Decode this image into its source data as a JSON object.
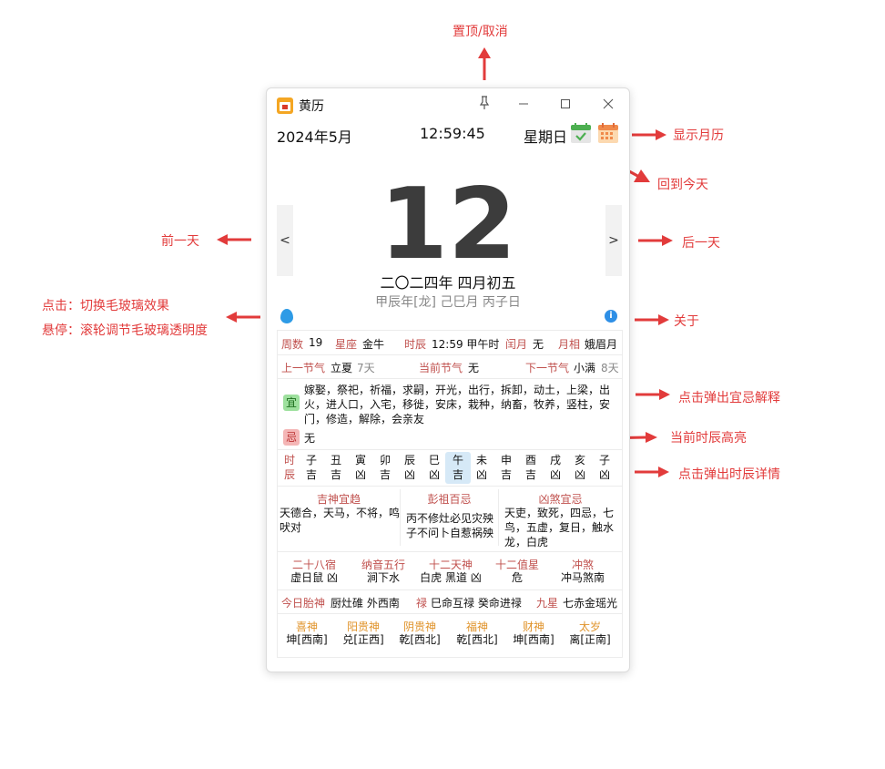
{
  "annotations": {
    "pin": "置顶/取消",
    "show_month": "显示月历",
    "today": "回到今天",
    "prev": "前一天",
    "next": "后一天",
    "click_glass": "点击：切换毛玻璃效果",
    "hover_glass": "悬停：滚轮调节毛玻璃透明度",
    "about": "关于",
    "yiji_popup": "点击弹出宜忌解释",
    "current_hour": "当前时辰高亮",
    "hour_popup": "点击弹出时辰详情"
  },
  "window": {
    "title": "黄历"
  },
  "header": {
    "month": "2024年5月",
    "time": "12:59:45",
    "weekday": "星期日"
  },
  "day": {
    "number": "12",
    "lunar": "二〇二四年 四月初五",
    "ganzhi": "甲辰年[龙] 己巳月 丙子日"
  },
  "nav": {
    "prev": "<",
    "next": ">"
  },
  "info_symbol": "i",
  "row1": [
    {
      "label": "周数",
      "value": "19"
    },
    {
      "label": "星座",
      "value": "金牛"
    },
    {
      "label": "时辰",
      "value": "12:59 甲午时"
    },
    {
      "label": "闰月",
      "value": "无"
    },
    {
      "label": "月相",
      "value": "娥眉月"
    }
  ],
  "jieqi": {
    "prev_label": "上一节气",
    "prev_value": "立夏",
    "prev_days": "7天",
    "cur_label": "当前节气",
    "cur_value": "无",
    "next_label": "下一节气",
    "next_value": "小满",
    "next_days": "8天"
  },
  "yi": {
    "tag": "宜",
    "line1": "嫁娶，祭祀，祈福，求嗣，开光，出行，拆卸，动土，上梁，出",
    "line2": "火，进人口，入宅，移徙，安床，栽种，纳畜，牧养，竖柱，安",
    "line3": "门，修造，解除，会亲友"
  },
  "ji": {
    "tag": "忌",
    "text": "无"
  },
  "hours": {
    "label_top": "时",
    "label_bottom": "辰",
    "items": [
      {
        "name": "子",
        "luck": "吉"
      },
      {
        "name": "丑",
        "luck": "吉"
      },
      {
        "name": "寅",
        "luck": "凶"
      },
      {
        "name": "卯",
        "luck": "吉"
      },
      {
        "name": "辰",
        "luck": "凶"
      },
      {
        "name": "巳",
        "luck": "凶"
      },
      {
        "name": "午",
        "luck": "吉"
      },
      {
        "name": "未",
        "luck": "凶"
      },
      {
        "name": "申",
        "luck": "吉"
      },
      {
        "name": "酉",
        "luck": "吉"
      },
      {
        "name": "戌",
        "luck": "凶"
      },
      {
        "name": "亥",
        "luck": "凶"
      },
      {
        "name": "子",
        "luck": "凶"
      }
    ],
    "highlight_index": 6
  },
  "sections": {
    "jishen": {
      "title": "吉神宜趋",
      "line1": "天德合，天马，不将，鸣",
      "line2": "吠对"
    },
    "pengzu": {
      "title": "彭祖百忌",
      "line1": "丙不修灶必见灾殃",
      "line2": "子不问卜自惹祸殃"
    },
    "xiongsha": {
      "title": "凶煞宜忌",
      "line1": "天吏，致死，四忌，七",
      "line2": "鸟，五虚，复日，触水",
      "line3": "龙，白虎"
    }
  },
  "row5": [
    {
      "title": "二十八宿",
      "value": "虚日鼠 凶"
    },
    {
      "title": "纳音五行",
      "value": "涧下水"
    },
    {
      "title": "十二天神",
      "value": "白虎 黑道 凶"
    },
    {
      "title": "十二值星",
      "value": "危"
    },
    {
      "title": "冲煞",
      "value": "冲马煞南"
    }
  ],
  "row6": {
    "taishen_label": "今日胎神",
    "taishen_value": "厨灶碓 外西南",
    "lu_label": "禄",
    "lu_value": "巳命互禄 癸命进禄",
    "jiuxing_label": "九星",
    "jiuxing_value": "七赤金瑶光"
  },
  "gods": [
    {
      "title": "喜神",
      "value": "坤[西南]"
    },
    {
      "title": "阳贵神",
      "value": "兑[正西]"
    },
    {
      "title": "阴贵神",
      "value": "乾[西北]"
    },
    {
      "title": "福神",
      "value": "乾[西北]"
    },
    {
      "title": "财神",
      "value": "坤[西南]"
    },
    {
      "title": "太岁",
      "value": "离[正南]"
    }
  ],
  "colors": {
    "annotation": "#e23b3b",
    "label": "#c0504d",
    "gold": "#e0932a",
    "yi_bg": "#9ee09e",
    "ji_bg": "#f4b6b6",
    "hour_highlight": "#d6e9f7"
  }
}
